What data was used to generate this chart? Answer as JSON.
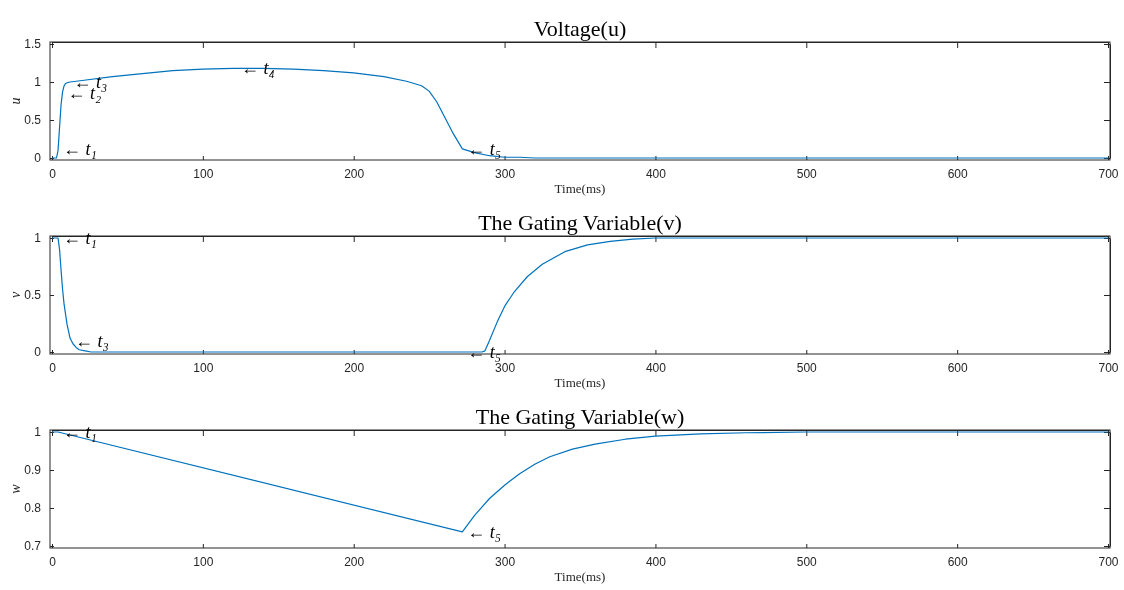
{
  "chart_data": [
    {
      "type": "line",
      "title": "Voltage(u)",
      "xlabel": "Time(ms)",
      "ylabel": "u",
      "xlim": [
        0,
        700
      ],
      "xticks": [
        0,
        100,
        200,
        300,
        400,
        500,
        600,
        700
      ],
      "ylim": [
        0,
        1.5
      ],
      "yticks": [
        0,
        0.5,
        1,
        1.5
      ],
      "marker": "none",
      "line_style": "solid",
      "series": [
        {
          "color": "#0072bd",
          "x": [
            0,
            3,
            4,
            5,
            6,
            7,
            8,
            9,
            10,
            12,
            20,
            40,
            60,
            80,
            100,
            120,
            140,
            160,
            180,
            200,
            220,
            235,
            245,
            250,
            255,
            260,
            266,
            272,
            280,
            290,
            300,
            310,
            320,
            400,
            500,
            600,
            700
          ],
          "values": [
            0,
            0,
            0.1,
            0.4,
            0.7,
            0.87,
            0.95,
            0.98,
            0.99,
            1.0,
            1.02,
            1.07,
            1.11,
            1.15,
            1.17,
            1.18,
            1.18,
            1.17,
            1.15,
            1.12,
            1.07,
            1.01,
            0.95,
            0.88,
            0.74,
            0.55,
            0.32,
            0.12,
            0.07,
            0.03,
            0.01,
            0.01,
            0,
            0,
            0,
            0,
            0
          ]
        }
      ],
      "annotations": [
        {
          "text": "← t₁",
          "x": 4,
          "y": 0.12
        },
        {
          "text": "← t₂",
          "x": 7,
          "y": 0.85
        },
        {
          "text": "← t₃",
          "x": 11,
          "y": 1.0
        },
        {
          "text": "← t₄",
          "x": 122,
          "y": 1.18
        },
        {
          "text": "← t₅",
          "x": 272,
          "y": 0.12
        }
      ]
    },
    {
      "type": "line",
      "title": "The Gating Variable(v)",
      "xlabel": "Time(ms)",
      "ylabel": "v",
      "xlim": [
        0,
        700
      ],
      "xticks": [
        0,
        100,
        200,
        300,
        400,
        500,
        600,
        700
      ],
      "ylim": [
        0,
        1
      ],
      "yticks": [
        0,
        0.5,
        1
      ],
      "marker": "none",
      "line_style": "solid",
      "series": [
        {
          "color": "#0072bd",
          "x": [
            0,
            4,
            5,
            6,
            7,
            8,
            10,
            12,
            14,
            16,
            18,
            22,
            26,
            40,
            100,
            200,
            285,
            287,
            290,
            295,
            300,
            306,
            315,
            325,
            340,
            355,
            370,
            385,
            400,
            450,
            500,
            600,
            700
          ],
          "values": [
            1,
            1,
            0.9,
            0.72,
            0.55,
            0.42,
            0.24,
            0.12,
            0.07,
            0.04,
            0.02,
            0.01,
            0,
            0,
            0,
            0,
            0,
            0.01,
            0.1,
            0.26,
            0.4,
            0.52,
            0.66,
            0.77,
            0.88,
            0.94,
            0.97,
            0.99,
            1,
            1,
            1,
            1,
            1
          ]
        }
      ],
      "annotations": [
        {
          "text": "← t₁",
          "x": 4,
          "y": 1
        },
        {
          "text": "← t₃",
          "x": 12,
          "y": 0.1
        },
        {
          "text": "← t₅",
          "x": 272,
          "y": 0
        }
      ]
    },
    {
      "type": "line",
      "title": "The Gating Variable(w)",
      "xlabel": "Time(ms)",
      "ylabel": "w",
      "xlim": [
        0,
        700
      ],
      "xticks": [
        0,
        100,
        200,
        300,
        400,
        500,
        600,
        700
      ],
      "ylim": [
        0.7,
        1
      ],
      "yticks": [
        0.7,
        0.8,
        0.9,
        1
      ],
      "marker": "none",
      "line_style": "solid",
      "series": [
        {
          "color": "#0072bd",
          "x": [
            0,
            4,
            272,
            280,
            290,
            300,
            310,
            320,
            330,
            345,
            360,
            380,
            400,
            430,
            460,
            500,
            600,
            700
          ],
          "values": [
            1,
            1,
            0.737,
            0.78,
            0.825,
            0.86,
            0.89,
            0.915,
            0.935,
            0.955,
            0.968,
            0.981,
            0.989,
            0.995,
            0.998,
            1,
            1,
            1
          ]
        }
      ],
      "annotations": [
        {
          "text": "← t₁",
          "x": 4,
          "y": 1
        },
        {
          "text": "← t₅",
          "x": 272,
          "y": 0.737
        }
      ]
    }
  ]
}
